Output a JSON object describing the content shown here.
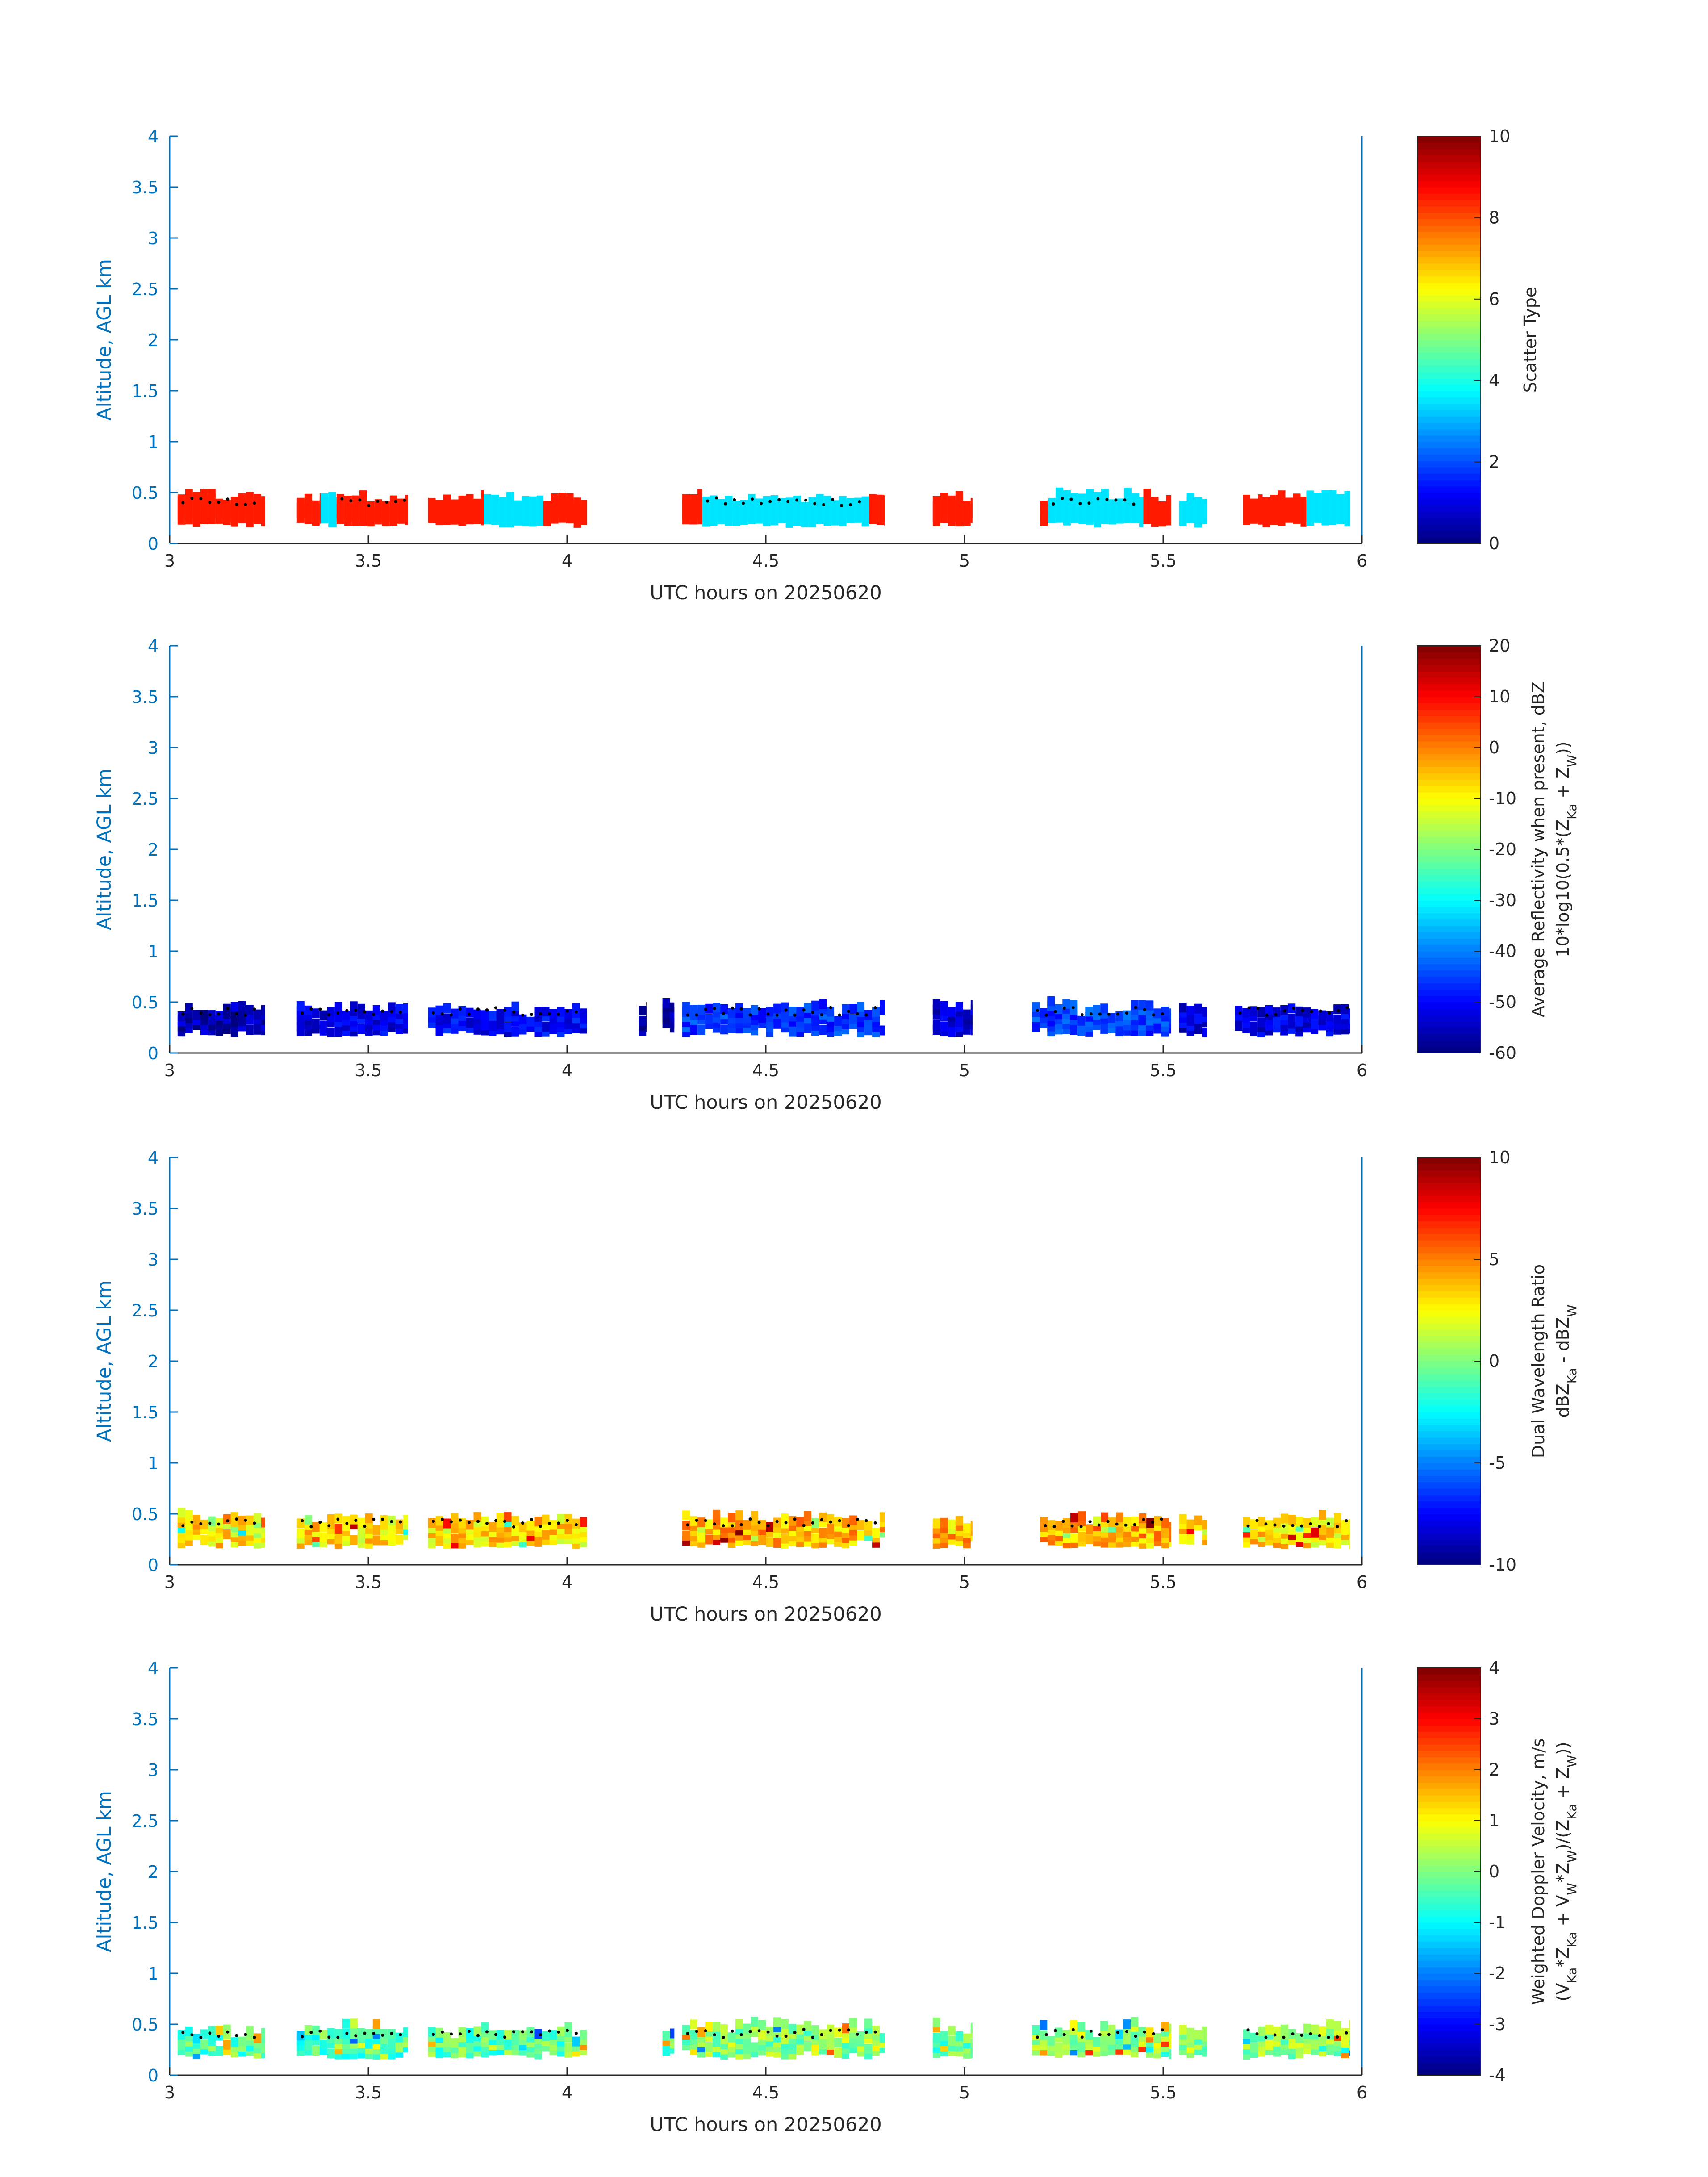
{
  "colors": {
    "axis": "#0072BD",
    "text": "#262626",
    "background": "#ffffff",
    "marker": "#000000",
    "colormap": "jet"
  },
  "chart_data": [
    {
      "type": "heatmap",
      "xlabel": "UTC hours on 20250620",
      "ylabel": "Altitude, AGL km",
      "xlim": [
        3,
        6
      ],
      "ylim": [
        0,
        4
      ],
      "xticks": [
        "3",
        "3.5",
        "4",
        "4.5",
        "5",
        "5.5",
        "6"
      ],
      "yticks": [
        "0",
        "0.5",
        "1",
        "1.5",
        "2",
        "2.5",
        "3",
        "3.5",
        "4"
      ],
      "colorbar": {
        "label_lines": [
          "Scatter Type"
        ],
        "range": [
          0,
          10
        ],
        "ticks": [
          "0",
          "2",
          "4",
          "6",
          "8",
          "10"
        ]
      },
      "grid": false,
      "data_note": "colored cells at altitudes 0.2–0.55 km",
      "segments": [
        {
          "x": [
            3.02,
            3.24
          ],
          "value": 8.5
        },
        {
          "x": [
            3.32,
            3.38
          ],
          "value": 8.5
        },
        {
          "x": [
            3.38,
            3.42
          ],
          "value": 3.5
        },
        {
          "x": [
            3.42,
            3.6
          ],
          "value": 8.5
        },
        {
          "x": [
            3.65,
            3.79
          ],
          "value": 8.5
        },
        {
          "x": [
            3.79,
            3.94
          ],
          "value": 3.5
        },
        {
          "x": [
            3.94,
            4.05
          ],
          "value": 8.5
        },
        {
          "x": [
            4.29,
            4.34
          ],
          "value": 8.5
        },
        {
          "x": [
            4.34,
            4.76
          ],
          "value": 3.5
        },
        {
          "x": [
            4.76,
            4.8
          ],
          "value": 8.5
        },
        {
          "x": [
            4.92,
            5.02
          ],
          "value": 8.5
        },
        {
          "x": [
            5.19,
            5.21
          ],
          "value": 8.5
        },
        {
          "x": [
            5.21,
            5.45
          ],
          "value": 3.5
        },
        {
          "x": [
            5.45,
            5.52
          ],
          "value": 8.5
        },
        {
          "x": [
            5.54,
            5.61
          ],
          "value": 3.5
        },
        {
          "x": [
            5.7,
            5.75
          ],
          "value": 8.5
        },
        {
          "x": [
            5.75,
            5.86
          ],
          "value": 8.5
        },
        {
          "x": [
            5.86,
            5.97
          ],
          "value": 3.5
        }
      ]
    },
    {
      "type": "heatmap",
      "xlabel": "UTC hours on 20250620",
      "ylabel": "Altitude, AGL km",
      "xlim": [
        3,
        6
      ],
      "ylim": [
        0,
        4
      ],
      "xticks": [
        "3",
        "3.5",
        "4",
        "4.5",
        "5",
        "5.5",
        "6"
      ],
      "yticks": [
        "0",
        "0.5",
        "1",
        "1.5",
        "2",
        "2.5",
        "3",
        "3.5",
        "4"
      ],
      "colorbar": {
        "label_lines": [
          "Average Reflectivity when present, dBZ",
          "10*log10(0.5*(Z_Ka + Z_W))"
        ],
        "range": [
          -60,
          20
        ],
        "ticks": [
          "-60",
          "-50",
          "-40",
          "-30",
          "-20",
          "-10",
          "0",
          "10",
          "20"
        ]
      },
      "grid": false,
      "segments": [
        {
          "x": [
            3.02,
            3.24
          ],
          "value": -56
        },
        {
          "x": [
            3.32,
            3.6
          ],
          "value": -52
        },
        {
          "x": [
            3.65,
            4.05
          ],
          "value": -50
        },
        {
          "x": [
            4.18,
            4.2
          ],
          "value": -56
        },
        {
          "x": [
            4.24,
            4.27
          ],
          "value": -56
        },
        {
          "x": [
            4.29,
            4.8
          ],
          "value": -46
        },
        {
          "x": [
            4.92,
            5.02
          ],
          "value": -54
        },
        {
          "x": [
            5.17,
            5.52
          ],
          "value": -45
        },
        {
          "x": [
            5.54,
            5.61
          ],
          "value": -53
        },
        {
          "x": [
            5.68,
            5.97
          ],
          "value": -52
        }
      ]
    },
    {
      "type": "heatmap",
      "xlabel": "UTC hours on 20250620",
      "ylabel": "Altitude, AGL km",
      "xlim": [
        3,
        6
      ],
      "ylim": [
        0,
        4
      ],
      "xticks": [
        "3",
        "3.5",
        "4",
        "4.5",
        "5",
        "5.5",
        "6"
      ],
      "yticks": [
        "0",
        "0.5",
        "1",
        "1.5",
        "2",
        "2.5",
        "3",
        "3.5",
        "4"
      ],
      "colorbar": {
        "label_lines": [
          "Dual Wavelength Ratio",
          "dBZ_Ka - dBZ_W"
        ],
        "range": [
          -10,
          10
        ],
        "ticks": [
          "-10",
          "-5",
          "0",
          "5",
          "10"
        ]
      },
      "grid": false,
      "segments": [
        {
          "x": [
            3.02,
            3.24
          ],
          "value": 3
        },
        {
          "x": [
            3.32,
            3.6
          ],
          "value": 3
        },
        {
          "x": [
            3.65,
            4.05
          ],
          "value": 3
        },
        {
          "x": [
            4.29,
            4.8
          ],
          "value": 4
        },
        {
          "x": [
            4.92,
            5.02
          ],
          "value": 4
        },
        {
          "x": [
            5.19,
            5.52
          ],
          "value": 4
        },
        {
          "x": [
            5.54,
            5.61
          ],
          "value": 3
        },
        {
          "x": [
            5.7,
            5.97
          ],
          "value": 3
        }
      ]
    },
    {
      "type": "heatmap",
      "xlabel": "UTC hours on 20250620",
      "ylabel": "Altitude, AGL km",
      "xlim": [
        3,
        6
      ],
      "ylim": [
        0,
        4
      ],
      "xticks": [
        "3",
        "3.5",
        "4",
        "4.5",
        "5",
        "5.5",
        "6"
      ],
      "yticks": [
        "0",
        "0.5",
        "1",
        "1.5",
        "2",
        "2.5",
        "3",
        "3.5",
        "4"
      ],
      "colorbar": {
        "label_lines": [
          "Weighted Doppler Velocity, m/s",
          "(V_Ka*Z_Ka + V_W*Z_W)/(Z_Ka + Z_W))"
        ],
        "range": [
          -4,
          4
        ],
        "ticks": [
          "-4",
          "-3",
          "-2",
          "-1",
          "0",
          "1",
          "2",
          "3",
          "4"
        ]
      },
      "grid": false,
      "segments": [
        {
          "x": [
            3.02,
            3.24
          ],
          "value": -0.3
        },
        {
          "x": [
            3.32,
            3.6
          ],
          "value": -0.4
        },
        {
          "x": [
            3.65,
            4.05
          ],
          "value": -0.2
        },
        {
          "x": [
            4.24,
            4.27
          ],
          "value": -0.2
        },
        {
          "x": [
            4.29,
            4.8
          ],
          "value": 0.1
        },
        {
          "x": [
            4.92,
            5.02
          ],
          "value": -0.2
        },
        {
          "x": [
            5.17,
            5.52
          ],
          "value": 0.3
        },
        {
          "x": [
            5.54,
            5.61
          ],
          "value": 0.2
        },
        {
          "x": [
            5.7,
            5.97
          ],
          "value": 0.1
        }
      ]
    }
  ]
}
